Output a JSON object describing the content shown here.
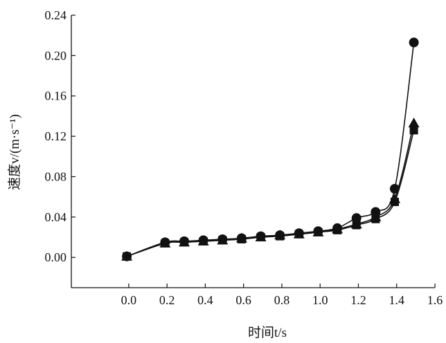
{
  "chart_data": {
    "type": "line",
    "title": "",
    "xlabel": "时间t/s",
    "ylabel": "速度v/(m·s⁻¹)",
    "xlim": [
      -0.3,
      1.6
    ],
    "ylim": [
      -0.03,
      0.24
    ],
    "xticks": [
      "0.0",
      "0.2",
      "0.4",
      "0.6",
      "0.8",
      "1.0",
      "1.2",
      "1.4",
      "1.6"
    ],
    "yticks": [
      "0.00",
      "0.04",
      "0.08",
      "0.12",
      "0.16",
      "0.20",
      "0.24"
    ],
    "grid": false,
    "legend": "none",
    "series": [
      {
        "marker": "circle",
        "x": [
          -0.01,
          0.19,
          0.29,
          0.39,
          0.49,
          0.59,
          0.69,
          0.79,
          0.89,
          0.99,
          1.09,
          1.19,
          1.29,
          1.39,
          1.49
        ],
        "y": [
          0.001,
          0.015,
          0.016,
          0.017,
          0.018,
          0.019,
          0.021,
          0.022,
          0.024,
          0.026,
          0.029,
          0.039,
          0.045,
          0.068,
          0.213
        ]
      },
      {
        "marker": "triangle",
        "x": [
          -0.01,
          0.19,
          0.29,
          0.39,
          0.49,
          0.59,
          0.69,
          0.79,
          0.89,
          0.99,
          1.09,
          1.19,
          1.29,
          1.39,
          1.49
        ],
        "y": [
          0.001,
          0.014,
          0.015,
          0.016,
          0.017,
          0.019,
          0.02,
          0.022,
          0.023,
          0.025,
          0.028,
          0.033,
          0.04,
          0.058,
          0.133
        ]
      },
      {
        "marker": "square",
        "x": [
          -0.01,
          0.19,
          0.29,
          0.39,
          0.49,
          0.59,
          0.69,
          0.79,
          0.89,
          0.99,
          1.09,
          1.19,
          1.29,
          1.39,
          1.49
        ],
        "y": [
          0.001,
          0.014,
          0.015,
          0.016,
          0.017,
          0.018,
          0.02,
          0.021,
          0.023,
          0.025,
          0.027,
          0.032,
          0.038,
          0.055,
          0.126
        ]
      }
    ]
  }
}
